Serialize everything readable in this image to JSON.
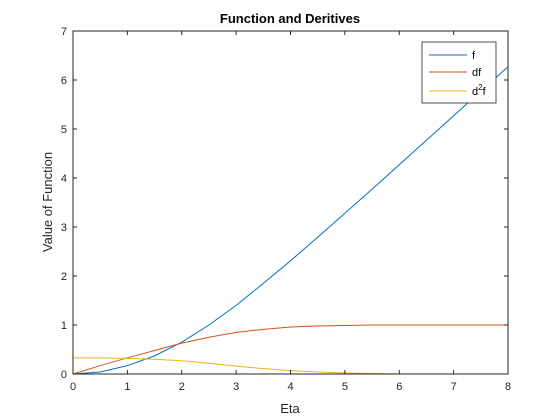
{
  "chart_data": {
    "type": "line",
    "title": "Function and Deritives",
    "xlabel": "Eta",
    "ylabel": "Value of Function",
    "xlim": [
      0,
      8
    ],
    "ylim": [
      0,
      7
    ],
    "xticks": [
      0,
      1,
      2,
      3,
      4,
      5,
      6,
      7,
      8
    ],
    "yticks": [
      0,
      1,
      2,
      3,
      4,
      5,
      6,
      7
    ],
    "grid": false,
    "legend_position": "top-right",
    "x": [
      0,
      0.5,
      1,
      1.5,
      2,
      2.5,
      3,
      3.5,
      4,
      4.5,
      5,
      5.5,
      6,
      6.5,
      7,
      7.5,
      8
    ],
    "series": [
      {
        "name": "f",
        "legend_text": "f",
        "color": "#0072BD",
        "values": [
          0,
          0.04,
          0.17,
          0.37,
          0.65,
          1.0,
          1.4,
          1.85,
          2.31,
          2.79,
          3.28,
          3.77,
          4.27,
          4.77,
          5.27,
          5.77,
          6.27
        ]
      },
      {
        "name": "df",
        "legend_text": "df",
        "color": "#D95319",
        "values": [
          0,
          0.17,
          0.33,
          0.48,
          0.63,
          0.75,
          0.85,
          0.91,
          0.96,
          0.98,
          0.99,
          1.0,
          1.0,
          1.0,
          1.0,
          1.0,
          1.0
        ]
      },
      {
        "name": "d2f",
        "legend_text": "d",
        "legend_sup": "2",
        "legend_suffix": "f",
        "color": "#EDB120",
        "values": [
          0.33,
          0.33,
          0.32,
          0.3,
          0.27,
          0.22,
          0.16,
          0.11,
          0.07,
          0.04,
          0.02,
          0.01,
          0.0,
          0.0,
          0.0,
          0.0,
          0.0
        ]
      }
    ]
  }
}
